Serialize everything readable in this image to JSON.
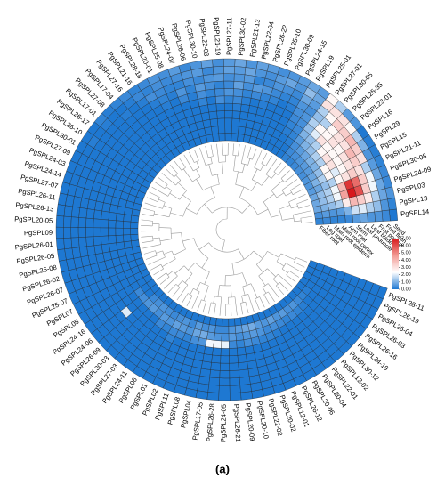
{
  "chart_data": {
    "type": "circular-heatmap",
    "caption": "(a)",
    "categories": [
      "PgSPL14",
      "PgSPL13",
      "PgSPL03",
      "PgSPL24-09",
      "PgSPL30-08",
      "PgSPL21-11",
      "PgSPL15",
      "PgSPL29",
      "PgSPL16",
      "PgSPL23-01",
      "PgSPL25-35",
      "PgSPL30-05",
      "PgSPL27-01",
      "PgSPL25-01",
      "PgSPL19",
      "PgSPL24-15",
      "PgSPL30-09",
      "PgSPL25-10",
      "PgSPL26-22",
      "PgSPL22-04",
      "PgSPL21-13",
      "PgSPL30-02",
      "PgSPL27-11",
      "PgSPL21-19",
      "PgSPL22-03",
      "PgSPL30-10",
      "PgSPL26-06",
      "PgSPL24-07",
      "PgSPL25-08",
      "PgSPL20-01",
      "PgSPL28-18",
      "PgSPL21-16",
      "PgSPL27-16",
      "PgSPL17-04",
      "PgSPL27-08",
      "PgSPL17-01",
      "PgSPL26-17",
      "PgSPL26-10",
      "PgSPL30-01",
      "PgSPL27-09",
      "PgSPL24-03",
      "PgSPL24-14",
      "PgSPL27-07",
      "PgSPL26-11",
      "PgSPL26-13",
      "PgSPL20-05",
      "PgSPL09",
      "PgSPL26-01",
      "PgSPL26-05",
      "PgSPL26-08",
      "PgSPL26-02",
      "PgSPL26-07",
      "PgSPL25-07",
      "PgSPL07",
      "PgSPL05",
      "PgSPL24-16",
      "PgSPL24-06",
      "PgSPL26-09",
      "PgSPL30-03",
      "PgSPL27-03",
      "PgSPL24-11",
      "PgSPL06",
      "PgSPL01",
      "PgSPL02",
      "PgSPL11",
      "PgSPL08",
      "PgSPL04",
      "PgSPL17-05",
      "PgSPL26-28",
      "PgSPL24-05",
      "PgSPL26-21",
      "PgSPL20-09",
      "PgSPL20-10",
      "PgSPL22-02",
      "PgSPL20-02",
      "PgSPL12-01",
      "PgSPL26-12",
      "PgSPL20-06",
      "PgSPL20-04",
      "PgSPL22-01",
      "PgSPL12-02",
      "PgSPL30-12",
      "PgSPL24-19",
      "PgSPL26-16",
      "PgSPL26-03",
      "PgSPL26-04",
      "PgSPL26-19",
      "PgSPL28-11"
    ],
    "rings": [
      "Seed",
      "Fruit flesh",
      "Fruit pedicel",
      "Leaf blade",
      "Leaf peduncle",
      "Stem",
      "Arm root",
      "Main root cortex",
      "Main root epiderm",
      "Leg root",
      "Fiber root"
    ],
    "values": [
      [
        0,
        0.3,
        0.5,
        0.5,
        0.8,
        0.6,
        0.3,
        0.2,
        0.2,
        0.3,
        0.2
      ],
      [
        0.2,
        0.5,
        1.2,
        1.5,
        2,
        1.8,
        1,
        0.6,
        0.5,
        0.6,
        0.4
      ],
      [
        0.5,
        0.8,
        1.5,
        2.8,
        3.5,
        4,
        2.8,
        1.5,
        1.2,
        1,
        0.8
      ],
      [
        0.3,
        0.8,
        2.2,
        3.5,
        6,
        7,
        4.5,
        2.2,
        1.5,
        1.2,
        0.8
      ],
      [
        0.3,
        0.8,
        2.2,
        3.5,
        5.5,
        6.5,
        4,
        2.2,
        1.5,
        1.2,
        0.8
      ],
      [
        0.2,
        0.6,
        1.5,
        3,
        3.5,
        3,
        2.5,
        1.5,
        1.2,
        0.8,
        0.6
      ],
      [
        0.1,
        0.5,
        3,
        3.5,
        3,
        2.5,
        2,
        2.5,
        1.5,
        1,
        0.5
      ],
      [
        0.1,
        1,
        3.5,
        4,
        3,
        2.5,
        3,
        2.5,
        1.2,
        0.8,
        0.5
      ],
      [
        0,
        1.5,
        4,
        3,
        2.5,
        2.5,
        3,
        1.5,
        1,
        0.6,
        0.4
      ],
      [
        0.5,
        2.5,
        3.5,
        3,
        3,
        2.5,
        2.5,
        1.5,
        1,
        0.6,
        0.4
      ],
      [
        0.6,
        3,
        3.5,
        2.5,
        2.5,
        3,
        1.5,
        1.2,
        0.8,
        0.5,
        0.3
      ],
      [
        1.5,
        3,
        2.5,
        1.5,
        2.5,
        2,
        1.2,
        1,
        0.6,
        0.4,
        0.2
      ],
      [
        2.5,
        3,
        1.5,
        1.2,
        1.5,
        1.2,
        1,
        0.6,
        0.4,
        0.3,
        0.2
      ],
      [
        0.6,
        0.8,
        0.6,
        0.4,
        0.5,
        0.4,
        0.3,
        0.2,
        0.1,
        0,
        0
      ],
      [
        0.8,
        1.2,
        0.8,
        0.5,
        0.4,
        0.3,
        0.2,
        0.1,
        0,
        0,
        0
      ],
      [
        0.6,
        0.5,
        0.3,
        0.2,
        0.1,
        0,
        0,
        0,
        0,
        0,
        0
      ],
      [
        0.5,
        0.8,
        0.4,
        0.2,
        0,
        0,
        0,
        0,
        0,
        0,
        0
      ],
      [
        0.4,
        0.6,
        0.5,
        0.3,
        0.2,
        0,
        0,
        0,
        0,
        0,
        0
      ],
      [
        0.6,
        0.4,
        0.3,
        0.5,
        0.2,
        0.1,
        0,
        0,
        0,
        0,
        0
      ],
      [
        0.7,
        0.5,
        0.2,
        0.6,
        0.3,
        0,
        0,
        0,
        0,
        0,
        0
      ],
      [
        0.5,
        0.8,
        0.6,
        0.4,
        0.2,
        0.1,
        0,
        0,
        0,
        0,
        0
      ],
      [
        0.8,
        0.6,
        0.5,
        0.7,
        0.4,
        0.3,
        0.1,
        0,
        0,
        0,
        0
      ],
      [
        0.6,
        0.7,
        0.4,
        0.3,
        0.5,
        0.2,
        0,
        0,
        0,
        0,
        0
      ],
      [
        0.4,
        0.5,
        0.6,
        0.2,
        0.3,
        0.4,
        0,
        0,
        0,
        0,
        0
      ],
      [
        0.7,
        0.3,
        0.5,
        0.4,
        0.2,
        0,
        0,
        0,
        0,
        0,
        0
      ],
      [
        0.5,
        0.6,
        0.3,
        0.6,
        0.4,
        0.2,
        0,
        0,
        0,
        0,
        0
      ],
      [
        0.3,
        0.5,
        0.4,
        0.2,
        0.1,
        0,
        0,
        0,
        0,
        0,
        0
      ],
      [
        0.6,
        0.4,
        0.2,
        0.5,
        0.3,
        0,
        0,
        0,
        0,
        0,
        0
      ],
      [
        0.4,
        0.3,
        0.2,
        0.1,
        0,
        0,
        0,
        0,
        0,
        0,
        0
      ],
      [
        0.5,
        0.4,
        0.3,
        0.2,
        0.1,
        0,
        0,
        0,
        0,
        0,
        0
      ],
      [
        0.3,
        0.2,
        0.4,
        0.1,
        0,
        0,
        0,
        0,
        0,
        0,
        0
      ],
      [
        0.2,
        0.3,
        0.1,
        0,
        0,
        0,
        0,
        0,
        0,
        0,
        0
      ],
      [
        0.3,
        0.1,
        0,
        0,
        0,
        0,
        0,
        0,
        0,
        0,
        0
      ],
      [
        0.2,
        0,
        0.1,
        0,
        0,
        0,
        0,
        0,
        0,
        0,
        0
      ],
      [
        0.1,
        0,
        0,
        0,
        0,
        0,
        0,
        0,
        0,
        0,
        0
      ],
      [
        0.2,
        0.1,
        0,
        0,
        0,
        0,
        0,
        0,
        0,
        0,
        0
      ],
      [
        0,
        0,
        0,
        0,
        0,
        0,
        0,
        0,
        0,
        0,
        0
      ],
      [
        0,
        0.1,
        0,
        0,
        0,
        0,
        0,
        0,
        0,
        0,
        0
      ],
      [
        0,
        0,
        0,
        0,
        0,
        0,
        0,
        0,
        0,
        0,
        0
      ],
      [
        0,
        0,
        0,
        0,
        0,
        0,
        0,
        0,
        0,
        0,
        0
      ],
      [
        0,
        0,
        0,
        0,
        0,
        0,
        0,
        0,
        0,
        0,
        0
      ],
      [
        0,
        0,
        0,
        0,
        0,
        0,
        0,
        0,
        0,
        0,
        0
      ],
      [
        0,
        0,
        0,
        0,
        0,
        0,
        0,
        0,
        0,
        0,
        0
      ],
      [
        0,
        0,
        0,
        0,
        0,
        0,
        0,
        0,
        0,
        0,
        0
      ],
      [
        0,
        0,
        0,
        0,
        0,
        0,
        0,
        0,
        0,
        0,
        0
      ],
      [
        0,
        0,
        0,
        0,
        0,
        0,
        0,
        0,
        0,
        0,
        0
      ],
      [
        0,
        0,
        0,
        0,
        0,
        0,
        0,
        0,
        0,
        0,
        0
      ],
      [
        0,
        0,
        0,
        0,
        0,
        0,
        0,
        0,
        0,
        0,
        0
      ],
      [
        0,
        0,
        0,
        0,
        0,
        0,
        0,
        0,
        0,
        0,
        0
      ],
      [
        0,
        0,
        0,
        0,
        0,
        0,
        0,
        0,
        0,
        0,
        0
      ],
      [
        0,
        0,
        0,
        0,
        0,
        0,
        0,
        0,
        0,
        0,
        0
      ],
      [
        0,
        0,
        0,
        0,
        0,
        0,
        0,
        0,
        0,
        0,
        0
      ],
      [
        0,
        0,
        0,
        0,
        0,
        0,
        0,
        0,
        0,
        0,
        0
      ],
      [
        0,
        0,
        0,
        0,
        0,
        0,
        0,
        0,
        0,
        0,
        0
      ],
      [
        0,
        0,
        0,
        0,
        0,
        0,
        0,
        0,
        0,
        0,
        0
      ],
      [
        0,
        0,
        0,
        0,
        0,
        0,
        0,
        0,
        0.3,
        0,
        0
      ],
      [
        0,
        0,
        0,
        0,
        0,
        2,
        0,
        0,
        0.4,
        0,
        0
      ],
      [
        0,
        0,
        0,
        0,
        0,
        0,
        0,
        0,
        0.5,
        0.3,
        0
      ],
      [
        0,
        0,
        0,
        0,
        0,
        0,
        0,
        0,
        0.6,
        0.4,
        0
      ],
      [
        0,
        0,
        0,
        0,
        0,
        0,
        0,
        0,
        0.4,
        0.5,
        0
      ],
      [
        0,
        0,
        0,
        0,
        0,
        0,
        0,
        0.3,
        0.6,
        0.4,
        0
      ],
      [
        0,
        0,
        0,
        0,
        0,
        0,
        0,
        0.2,
        0.5,
        0.3,
        0
      ],
      [
        0,
        0,
        0,
        0,
        0,
        0,
        0.2,
        0.3,
        0.7,
        0.4,
        0
      ],
      [
        0,
        0,
        0,
        0,
        0,
        0,
        0,
        0.3,
        0.6,
        0.5,
        0
      ],
      [
        0,
        0,
        0,
        0,
        0,
        0,
        0,
        0.2,
        0.5,
        0.3,
        0
      ],
      [
        0,
        0,
        0,
        0,
        0,
        0,
        0,
        0.4,
        0.8,
        0.6,
        0
      ],
      [
        0,
        0,
        0,
        0,
        0,
        0,
        0,
        0.5,
        0.9,
        0.4,
        0
      ],
      [
        0,
        0,
        0,
        0,
        0,
        0,
        0,
        2.2,
        0.6,
        0.5,
        0
      ],
      [
        0,
        0,
        0,
        0,
        0,
        0,
        0,
        2.2,
        0.5,
        0.3,
        0
      ],
      [
        0,
        0,
        0,
        0,
        0,
        0,
        0,
        2.1,
        0.4,
        0.3,
        0
      ],
      [
        0,
        0,
        0,
        0,
        0,
        0,
        0,
        0.3,
        0.6,
        0.5,
        0
      ],
      [
        0,
        0,
        0,
        0,
        0,
        0,
        0,
        0.2,
        0.4,
        0.6,
        0
      ],
      [
        0,
        0,
        0,
        0,
        0,
        0,
        0,
        0.4,
        0.5,
        0.8,
        0
      ],
      [
        0,
        0,
        0,
        0,
        0,
        0,
        0,
        0.3,
        0.6,
        0.9,
        0
      ],
      [
        0,
        0,
        0,
        0,
        0,
        0,
        0,
        0.2,
        0.5,
        0.6,
        0
      ],
      [
        0,
        0,
        0,
        0,
        0,
        0,
        0,
        0.2,
        0.3,
        0.5,
        0
      ],
      [
        0,
        0,
        0,
        0,
        0,
        0,
        0,
        0.1,
        0.4,
        0.7,
        0
      ],
      [
        0,
        0,
        0,
        0,
        0,
        0,
        0,
        0,
        0.3,
        0.5,
        0
      ],
      [
        0,
        0,
        0,
        0,
        0,
        0,
        0,
        0,
        0.2,
        0.6,
        0
      ],
      [
        0,
        0,
        0,
        0,
        0,
        0,
        0,
        0,
        0.3,
        0.4,
        0
      ],
      [
        0,
        0,
        0,
        0,
        0,
        0,
        0,
        0,
        0.2,
        0.5,
        0
      ],
      [
        0,
        0,
        0,
        0,
        0,
        0,
        0,
        0,
        0.1,
        0.3,
        0
      ],
      [
        0,
        0,
        0,
        0,
        0,
        0,
        0,
        0,
        0,
        0.2,
        0
      ],
      [
        0,
        0,
        0,
        0,
        0,
        0,
        0,
        0,
        0,
        0.1,
        0
      ],
      [
        0,
        0,
        0,
        0,
        0,
        0,
        0,
        0,
        0,
        0,
        0
      ],
      [
        0,
        0,
        0,
        0,
        0,
        0,
        0,
        0,
        0,
        0,
        0
      ],
      [
        0,
        0,
        0,
        0,
        0,
        0,
        0,
        0,
        0,
        0,
        0
      ],
      [
        0,
        0,
        0,
        0,
        0,
        0,
        0,
        0,
        0,
        0,
        0
      ]
    ],
    "colorscale": [
      "#1e78d2",
      "#ffffff",
      "#f29a94",
      "#d7191c"
    ],
    "colorlim": [
      0,
      7
    ],
    "colorticks": [
      {
        "value": 0,
        "label": "0.00"
      },
      {
        "value": 1,
        "label": "1.00"
      },
      {
        "value": 2,
        "label": "2.00"
      },
      {
        "value": 3,
        "label": "3.00"
      },
      {
        "value": 4,
        "label": "4.00"
      },
      {
        "value": 5,
        "label": "5.00"
      },
      {
        "value": 6,
        "label": "6.00"
      },
      {
        "value": 7,
        "label": "7.00"
      }
    ]
  }
}
